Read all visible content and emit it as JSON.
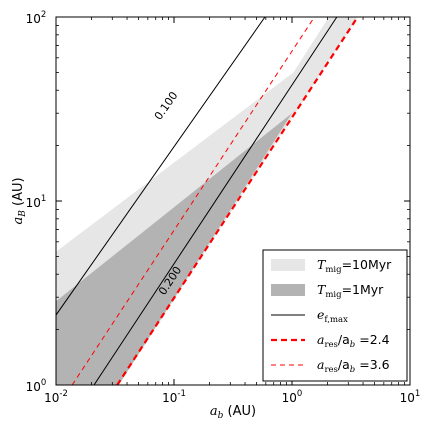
{
  "chart_data": {
    "type": "line",
    "xscale": "log",
    "yscale": "log",
    "xlim": [
      0.01,
      10
    ],
    "ylim": [
      1,
      100
    ],
    "xlabel": "a_b (AU)",
    "ylabel": "a_B (AU)",
    "x_ticks": [
      {
        "value": 0.01,
        "base": "10",
        "exp": "-2"
      },
      {
        "value": 0.1,
        "base": "10",
        "exp": "-1"
      },
      {
        "value": 1,
        "base": "10",
        "exp": "0"
      },
      {
        "value": 10,
        "base": "10",
        "exp": "1"
      }
    ],
    "y_ticks": [
      {
        "value": 1,
        "base": "10",
        "exp": "0"
      },
      {
        "value": 10,
        "base": "10",
        "exp": "1"
      },
      {
        "value": 100,
        "base": "10",
        "exp": "2"
      }
    ],
    "grid": false,
    "legend_position": "lower-right",
    "colors": {
      "tmig_10myr": "#e6e6e6",
      "tmig_1myr": "#b3b3b3",
      "efmax": "#000000",
      "resonance": "#ff0000"
    },
    "series": [
      {
        "name": "T_mig=10Myr",
        "kind": "fill",
        "vertices": [
          [
            0.01,
            1
          ],
          [
            0.01,
            5.3
          ],
          [
            1.03,
            50
          ],
          [
            2.05,
            100
          ],
          [
            3.6,
            100
          ],
          [
            0.034,
            1
          ]
        ]
      },
      {
        "name": "T_mig=1Myr",
        "kind": "fill",
        "vertices": [
          [
            0.01,
            1
          ],
          [
            0.01,
            2.85
          ],
          [
            1.0,
            30
          ],
          [
            0.034,
            1
          ]
        ]
      },
      {
        "name": "e_f,max",
        "kind": "line",
        "style": "solid",
        "points": [
          [
            0.01,
            2.4
          ],
          [
            0.59,
            100
          ]
        ],
        "label": "0.100",
        "label_at": [
          0.085,
          33
        ]
      },
      {
        "name": "",
        "kind": "line",
        "style": "solid",
        "points": [
          [
            0.021,
            1
          ],
          [
            2.4,
            100
          ]
        ],
        "label": "0.200",
        "label_at": [
          0.092,
          3.7
        ]
      },
      {
        "name": "a_res/a_b=2.4",
        "kind": "line",
        "style": "dashed-thick",
        "points": [
          [
            0.033,
            1
          ],
          [
            3.6,
            100
          ]
        ]
      },
      {
        "name": "a_res/a_b=3.6",
        "kind": "line",
        "style": "dashed-thin",
        "points": [
          [
            0.0137,
            1
          ],
          [
            1.55,
            100
          ]
        ]
      }
    ],
    "legend": [
      {
        "symbol": "fill-light",
        "text_main": "T",
        "text_sub": "mig",
        "text_rest": "=10Myr"
      },
      {
        "symbol": "fill-dark",
        "text_main": "T",
        "text_sub": "mig",
        "text_rest": "=1Myr"
      },
      {
        "symbol": "solid",
        "text_main": "e",
        "text_sub": "f,max",
        "text_rest": ""
      },
      {
        "symbol": "dashed-thick",
        "text_main": "a",
        "text_sub": "res",
        "text_rest": "/a_b =2.4"
      },
      {
        "symbol": "dashed-thin",
        "text_main": "a",
        "text_sub": "res",
        "text_rest": "/a_b =3.6"
      }
    ]
  }
}
